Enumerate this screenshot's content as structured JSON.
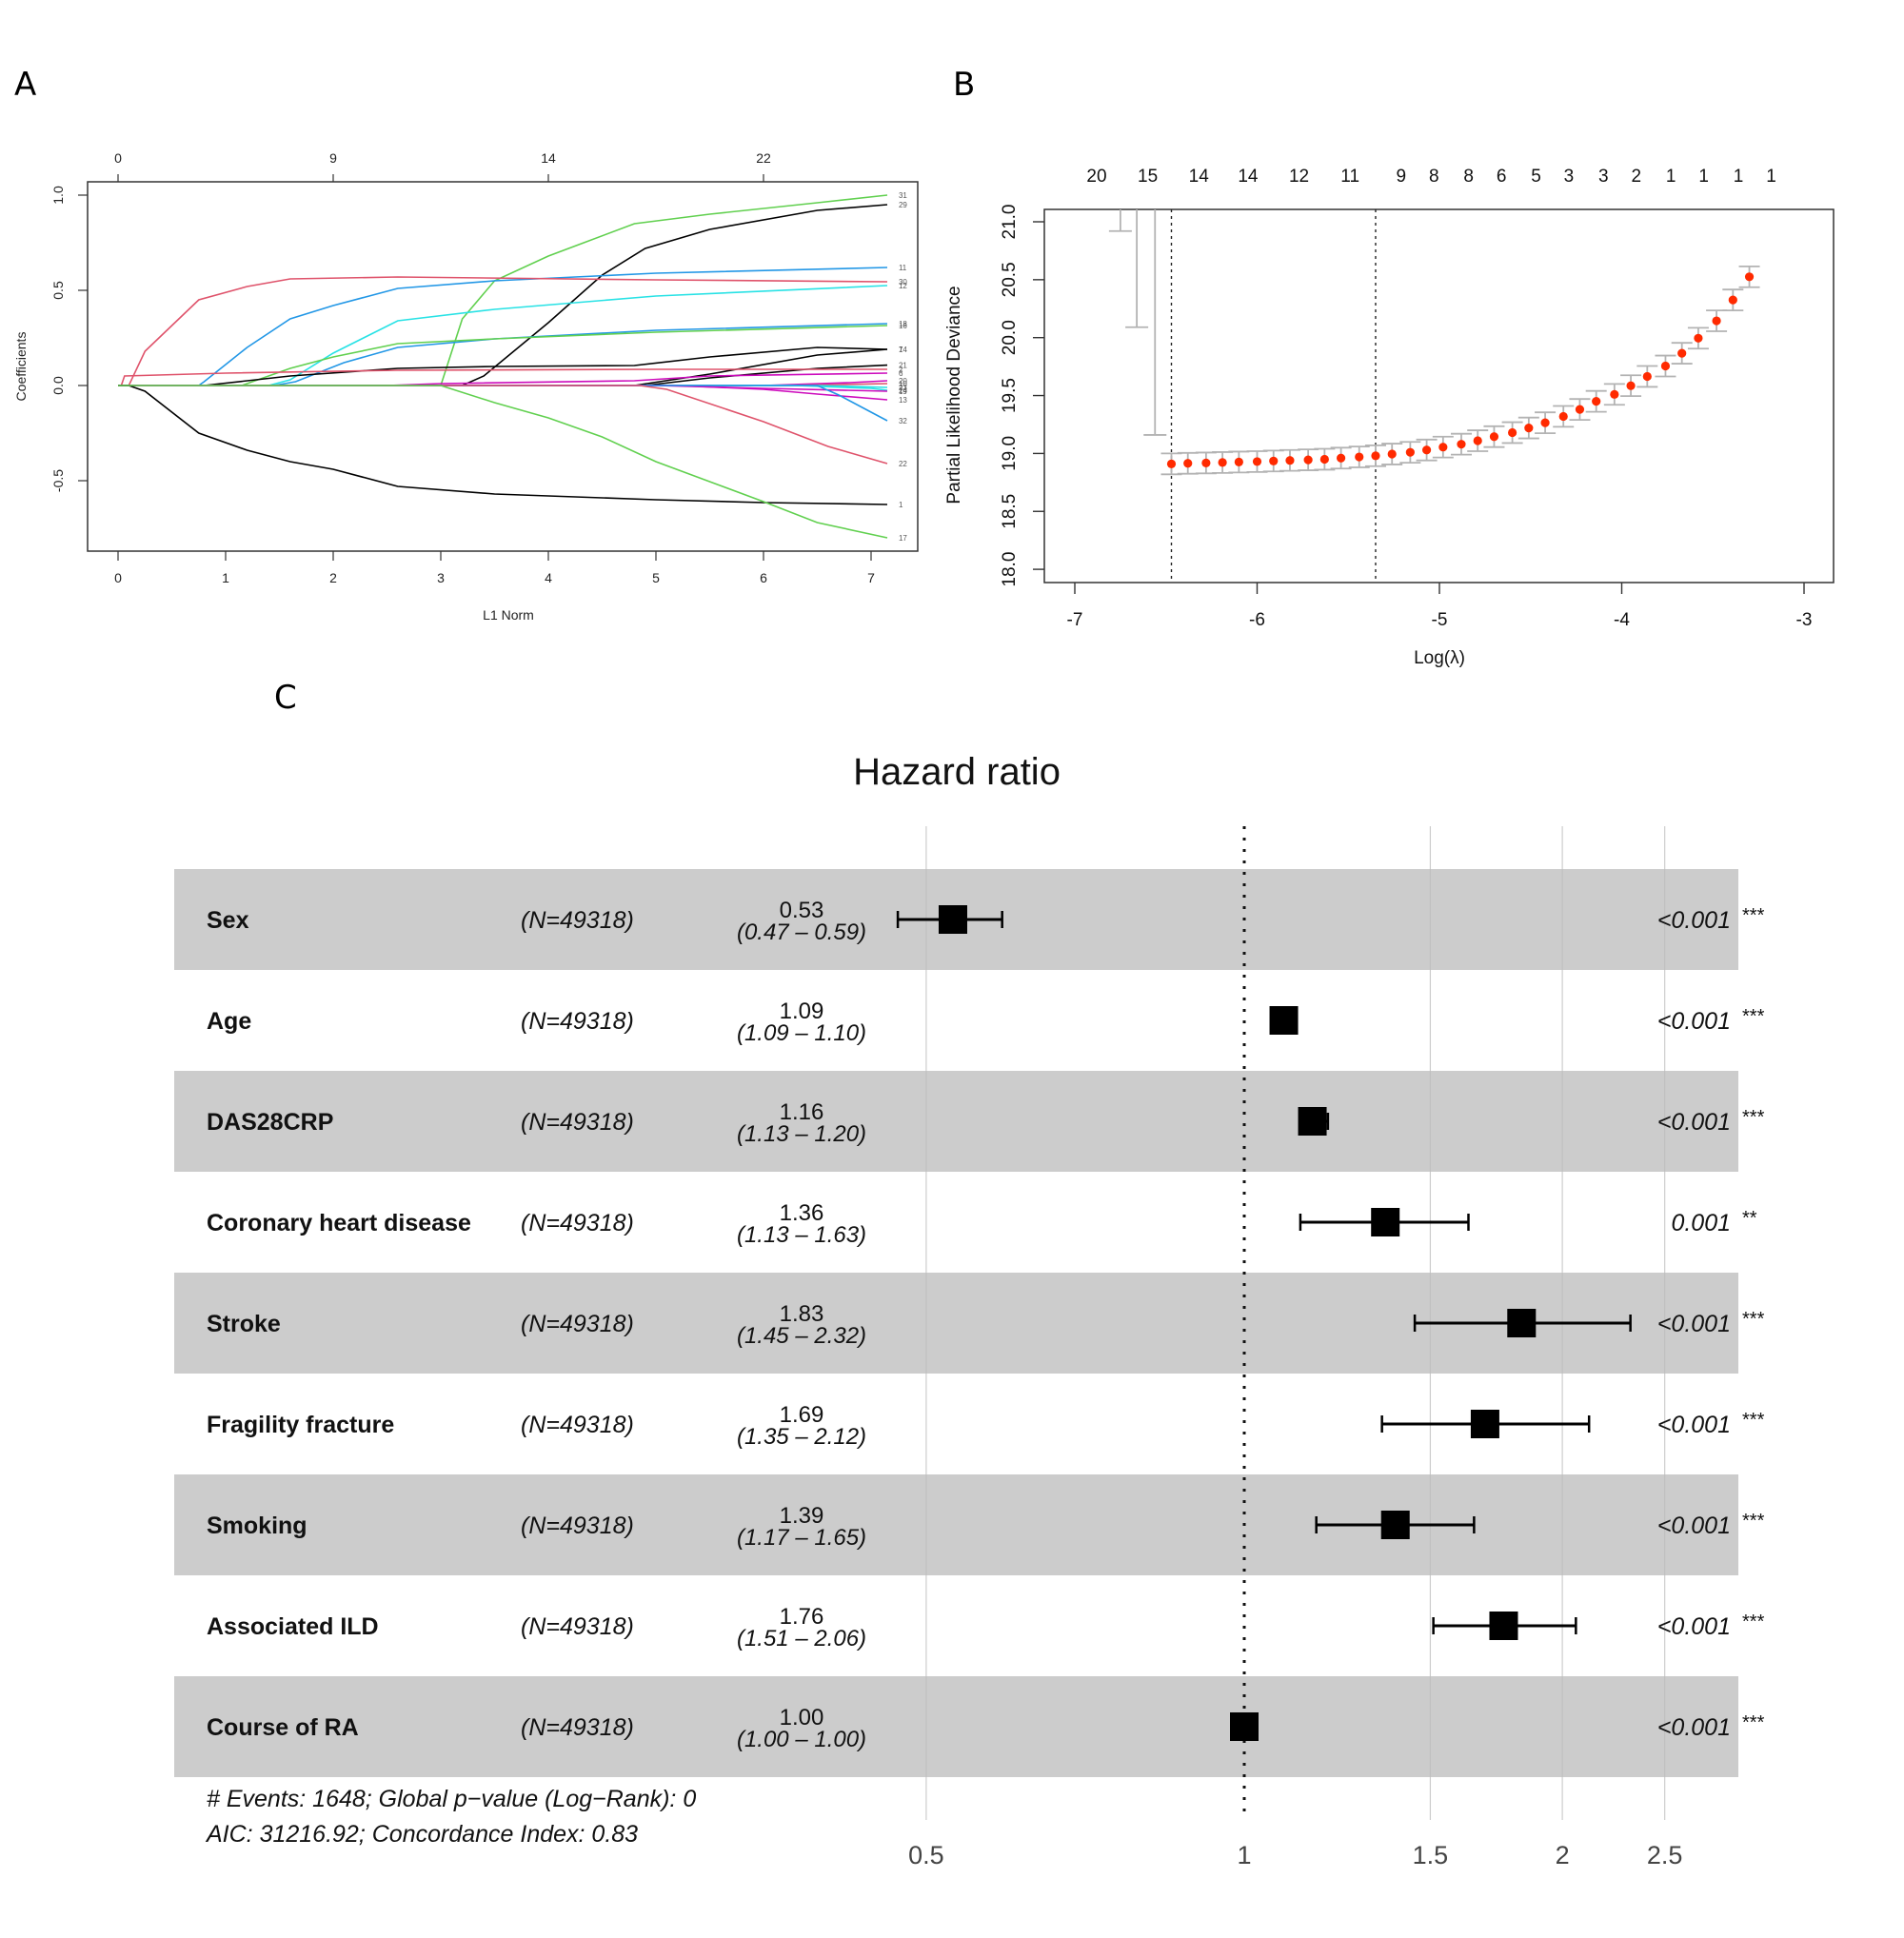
{
  "figure": {
    "panel_labels": [
      "A",
      "B",
      "C"
    ]
  },
  "colors": {
    "black": "#000000",
    "red": "#DF536B",
    "green": "#61D04F",
    "blue": "#2297E6",
    "cyan": "#28E2E5",
    "magenta": "#CD0BBC",
    "point_red": "#FF2A00",
    "errorbar_grey": "#B3B3B3",
    "band_grey": "#CCCCCC",
    "gridline_grey": "#BDBDBD"
  },
  "chart_data": [
    {
      "id": "A",
      "type": "line",
      "title": "",
      "xlabel": "L1 Norm",
      "ylabel": "Coefficients",
      "xlim": [
        -0.3,
        7.4
      ],
      "ylim": [
        -0.87,
        1.07
      ],
      "x_ticks": [
        0,
        1,
        2,
        3,
        4,
        5,
        6,
        7
      ],
      "y_ticks": [
        -0.5,
        0.0,
        0.5,
        1.0
      ],
      "y_tick_labels": [
        "-0.5",
        "0.0",
        "0.5",
        "1.0"
      ],
      "top_axis": {
        "ticks_at_x": [
          0,
          2,
          4,
          6
        ],
        "labels": [
          "0",
          "9",
          "14",
          "22"
        ]
      },
      "series": [
        {
          "name": "31",
          "color": "green",
          "x": [
            0,
            3.0,
            3.2,
            3.5,
            4.0,
            4.8,
            5.5,
            6.5,
            7.15
          ],
          "y": [
            0,
            0,
            0.35,
            0.55,
            0.68,
            0.85,
            0.9,
            0.96,
            1.0
          ]
        },
        {
          "name": "29",
          "color": "black",
          "x": [
            0,
            3.2,
            3.4,
            4.0,
            4.5,
            4.9,
            5.5,
            6.5,
            7.15
          ],
          "y": [
            0,
            0,
            0.05,
            0.33,
            0.58,
            0.72,
            0.82,
            0.92,
            0.95
          ]
        },
        {
          "name": "11",
          "color": "blue",
          "x": [
            0,
            0.75,
            0.8,
            1.2,
            1.6,
            2.0,
            2.6,
            3.5,
            5.0,
            7.15
          ],
          "y": [
            0,
            0,
            0.02,
            0.2,
            0.35,
            0.42,
            0.51,
            0.55,
            0.59,
            0.62
          ]
        },
        {
          "name": "30",
          "color": "red",
          "x": [
            0,
            0.1,
            0.25,
            0.75,
            1.2,
            1.6,
            2.6,
            5.0,
            7.15
          ],
          "y": [
            0,
            0,
            0.18,
            0.45,
            0.52,
            0.56,
            0.57,
            0.555,
            0.545
          ]
        },
        {
          "name": "12",
          "color": "cyan",
          "x": [
            0,
            1.4,
            1.6,
            2.0,
            2.6,
            3.5,
            5.0,
            7.15
          ],
          "y": [
            0,
            0,
            0.03,
            0.17,
            0.34,
            0.4,
            0.47,
            0.525
          ]
        },
        {
          "name": "18",
          "color": "blue",
          "x": [
            0,
            1.45,
            1.65,
            2.1,
            2.6,
            3.5,
            5.0,
            7.15
          ],
          "y": [
            0,
            0,
            0.02,
            0.12,
            0.2,
            0.245,
            0.29,
            0.325
          ]
        },
        {
          "name": "16",
          "color": "green",
          "x": [
            0,
            1.15,
            1.6,
            2.0,
            2.6,
            3.5,
            5.0,
            7.15
          ],
          "y": [
            0,
            0,
            0.09,
            0.15,
            0.22,
            0.245,
            0.28,
            0.315
          ]
        },
        {
          "name": "7",
          "color": "black",
          "x": [
            0,
            0.8,
            1.6,
            2.6,
            3.5,
            4.8,
            5.5,
            6.5,
            7.15
          ],
          "y": [
            0,
            0,
            0.05,
            0.09,
            0.1,
            0.105,
            0.15,
            0.2,
            0.19
          ]
        },
        {
          "name": "14",
          "color": "black",
          "x": [
            0,
            4.8,
            5.5,
            6.5,
            7.15
          ],
          "y": [
            0,
            0,
            0.06,
            0.16,
            0.19
          ]
        },
        {
          "name": "21",
          "color": "black",
          "x": [
            0,
            4.9,
            5.5,
            6.5,
            7.15
          ],
          "y": [
            0,
            0,
            0.04,
            0.09,
            0.107
          ]
        },
        {
          "name": "2",
          "color": "red",
          "x": [
            0,
            0.03,
            0.06,
            1.0,
            2.6,
            5.0,
            7.15
          ],
          "y": [
            0,
            0,
            0.05,
            0.065,
            0.08,
            0.085,
            0.085
          ]
        },
        {
          "name": "6",
          "color": "magenta",
          "x": [
            0,
            2.5,
            3.0,
            4.8,
            5.5,
            7.15
          ],
          "y": [
            0,
            0,
            0.01,
            0.025,
            0.05,
            0.065
          ]
        },
        {
          "name": "20",
          "color": "magenta",
          "x": [
            0,
            6.0,
            6.8,
            7.15
          ],
          "y": [
            0,
            0,
            0.015,
            0.025
          ]
        },
        {
          "name": "10",
          "color": "red",
          "x": [
            0,
            6.2,
            7.15
          ],
          "y": [
            0,
            0,
            0.01
          ]
        },
        {
          "name": "23",
          "color": "cyan",
          "x": [
            0,
            6.5,
            7.15
          ],
          "y": [
            0,
            0,
            -0.01
          ]
        },
        {
          "name": "24",
          "color": "cyan",
          "x": [
            0,
            6.3,
            7.0,
            7.15
          ],
          "y": [
            0,
            0,
            -0.015,
            -0.025
          ]
        },
        {
          "name": "19",
          "color": "magenta",
          "x": [
            0,
            5.0,
            6.0,
            7.15
          ],
          "y": [
            0,
            0,
            -0.015,
            -0.03
          ]
        },
        {
          "name": "13",
          "color": "magenta",
          "x": [
            0,
            5.2,
            6.0,
            6.5,
            7.15
          ],
          "y": [
            0,
            0,
            -0.02,
            -0.045,
            -0.075
          ]
        },
        {
          "name": "32",
          "color": "blue",
          "x": [
            0,
            6.5,
            6.7,
            7.0,
            7.15
          ],
          "y": [
            0,
            0,
            -0.05,
            -0.14,
            -0.185
          ]
        },
        {
          "name": "22",
          "color": "red",
          "x": [
            0,
            4.85,
            5.1,
            6.0,
            6.6,
            7.15
          ],
          "y": [
            0,
            0,
            -0.02,
            -0.19,
            -0.32,
            -0.41
          ]
        },
        {
          "name": "1",
          "color": "black",
          "x": [
            0,
            0.1,
            0.25,
            0.75,
            1.2,
            1.6,
            2.0,
            2.6,
            3.5,
            5.0,
            6.0,
            7.15
          ],
          "y": [
            0,
            0,
            -0.03,
            -0.25,
            -0.34,
            -0.4,
            -0.44,
            -0.53,
            -0.57,
            -0.6,
            -0.615,
            -0.625
          ]
        },
        {
          "name": "17",
          "color": "green",
          "x": [
            0,
            3.0,
            3.5,
            4.0,
            4.5,
            5.0,
            6.0,
            6.5,
            7.15
          ],
          "y": [
            0,
            0,
            -0.09,
            -0.17,
            -0.27,
            -0.4,
            -0.61,
            -0.72,
            -0.8
          ]
        }
      ]
    },
    {
      "id": "B",
      "type": "scatter",
      "title": "",
      "xlabel": "Log(λ)",
      "ylabel": "Partial Likelihood Deviance",
      "xlim": [
        -7.16,
        -2.84
      ],
      "ylim": [
        17.88,
        21.1
      ],
      "x_ticks": [
        -7,
        -6,
        -5,
        -4,
        -3
      ],
      "y_ticks": [
        18.0,
        18.5,
        19.0,
        19.5,
        20.0,
        20.5,
        21.0
      ],
      "y_tick_labels": [
        "18.0",
        "18.5",
        "19.0",
        "19.5",
        "20.0",
        "20.5",
        "21.0"
      ],
      "top_axis_labels": [
        "20",
        "15",
        "14",
        "14",
        "12",
        "11",
        "9",
        "8",
        "8",
        "6",
        "5",
        "3",
        "3",
        "2",
        "1",
        "1",
        "1",
        "1"
      ],
      "top_axis_positions": [
        -6.88,
        -6.6,
        -6.32,
        -6.05,
        -5.77,
        -5.49,
        -5.21,
        -5.03,
        -4.84,
        -4.66,
        -4.47,
        -4.29,
        -4.1,
        -3.92,
        -3.73,
        -3.55,
        -3.36,
        -3.18
      ],
      "vlines": [
        -6.47,
        -5.35
      ],
      "offscale_errorbars": [
        {
          "x": -6.75,
          "lower": 20.92
        },
        {
          "x": -6.66,
          "lower": 20.09
        },
        {
          "x": -6.56,
          "lower": 19.16
        }
      ],
      "points": [
        {
          "x": -6.47,
          "y": 18.91,
          "lo": 18.82,
          "hi": 19.0
        },
        {
          "x": -6.38,
          "y": 18.915,
          "lo": 18.825,
          "hi": 19.005
        },
        {
          "x": -6.28,
          "y": 18.918,
          "lo": 18.828,
          "hi": 19.008
        },
        {
          "x": -6.19,
          "y": 18.922,
          "lo": 18.832,
          "hi": 19.012
        },
        {
          "x": -6.1,
          "y": 18.926,
          "lo": 18.836,
          "hi": 19.016
        },
        {
          "x": -6.0,
          "y": 18.93,
          "lo": 18.84,
          "hi": 19.02
        },
        {
          "x": -5.91,
          "y": 18.935,
          "lo": 18.845,
          "hi": 19.025
        },
        {
          "x": -5.82,
          "y": 18.94,
          "lo": 18.85,
          "hi": 19.03
        },
        {
          "x": -5.72,
          "y": 18.945,
          "lo": 18.855,
          "hi": 19.035
        },
        {
          "x": -5.63,
          "y": 18.95,
          "lo": 18.86,
          "hi": 19.04
        },
        {
          "x": -5.54,
          "y": 18.96,
          "lo": 18.87,
          "hi": 19.05
        },
        {
          "x": -5.44,
          "y": 18.97,
          "lo": 18.88,
          "hi": 19.06
        },
        {
          "x": -5.35,
          "y": 18.98,
          "lo": 18.89,
          "hi": 19.07
        },
        {
          "x": -5.26,
          "y": 18.995,
          "lo": 18.905,
          "hi": 19.085
        },
        {
          "x": -5.16,
          "y": 19.01,
          "lo": 18.92,
          "hi": 19.1
        },
        {
          "x": -5.07,
          "y": 19.03,
          "lo": 18.94,
          "hi": 19.12
        },
        {
          "x": -4.98,
          "y": 19.055,
          "lo": 18.965,
          "hi": 19.145
        },
        {
          "x": -4.88,
          "y": 19.08,
          "lo": 18.99,
          "hi": 19.17
        },
        {
          "x": -4.79,
          "y": 19.11,
          "lo": 19.02,
          "hi": 19.2
        },
        {
          "x": -4.7,
          "y": 19.145,
          "lo": 19.055,
          "hi": 19.235
        },
        {
          "x": -4.6,
          "y": 19.18,
          "lo": 19.09,
          "hi": 19.27
        },
        {
          "x": -4.51,
          "y": 19.22,
          "lo": 19.13,
          "hi": 19.31
        },
        {
          "x": -4.42,
          "y": 19.265,
          "lo": 19.175,
          "hi": 19.355
        },
        {
          "x": -4.32,
          "y": 19.32,
          "lo": 19.23,
          "hi": 19.41
        },
        {
          "x": -4.23,
          "y": 19.38,
          "lo": 19.29,
          "hi": 19.47
        },
        {
          "x": -4.14,
          "y": 19.45,
          "lo": 19.36,
          "hi": 19.54
        },
        {
          "x": -4.04,
          "y": 19.51,
          "lo": 19.42,
          "hi": 19.6
        },
        {
          "x": -3.95,
          "y": 19.585,
          "lo": 19.495,
          "hi": 19.675
        },
        {
          "x": -3.86,
          "y": 19.665,
          "lo": 19.575,
          "hi": 19.755
        },
        {
          "x": -3.76,
          "y": 19.755,
          "lo": 19.665,
          "hi": 19.845
        },
        {
          "x": -3.67,
          "y": 19.865,
          "lo": 19.775,
          "hi": 19.955
        },
        {
          "x": -3.58,
          "y": 19.995,
          "lo": 19.905,
          "hi": 20.085
        },
        {
          "x": -3.48,
          "y": 20.145,
          "lo": 20.055,
          "hi": 20.235
        },
        {
          "x": -3.39,
          "y": 20.325,
          "lo": 20.235,
          "hi": 20.415
        },
        {
          "x": -3.3,
          "y": 20.525,
          "lo": 20.435,
          "hi": 20.615
        }
      ]
    },
    {
      "id": "C",
      "type": "forest",
      "title": "Hazard ratio",
      "x_scale": "log",
      "xlim": [
        0.43,
        2.9
      ],
      "x_ticks": [
        0.5,
        1,
        1.5,
        2,
        2.5
      ],
      "x_tick_labels": [
        "0.5",
        "1",
        "1.5",
        "2",
        "2.5"
      ],
      "reference_line": 1,
      "rows": [
        {
          "label": "Sex",
          "n": "(N=49318)",
          "hr": 0.53,
          "hr_text": "0.53",
          "lo": 0.47,
          "hi": 0.59,
          "ci_text": "(0.47 – 0.59)",
          "p": "<0.001",
          "stars": "***",
          "shaded": true
        },
        {
          "label": "Age",
          "n": "(N=49318)",
          "hr": 1.09,
          "hr_text": "1.09",
          "lo": 1.09,
          "hi": 1.1,
          "ci_text": "(1.09 – 1.10)",
          "p": "<0.001",
          "stars": "***",
          "shaded": false
        },
        {
          "label": "DAS28CRP",
          "n": "(N=49318)",
          "hr": 1.16,
          "hr_text": "1.16",
          "lo": 1.13,
          "hi": 1.2,
          "ci_text": "(1.13 – 1.20)",
          "p": "<0.001",
          "stars": "***",
          "shaded": true
        },
        {
          "label": "Coronary heart disease",
          "n": "(N=49318)",
          "hr": 1.36,
          "hr_text": "1.36",
          "lo": 1.13,
          "hi": 1.63,
          "ci_text": "(1.13 – 1.63)",
          "p": "0.001",
          "stars": "**",
          "shaded": false
        },
        {
          "label": "Stroke",
          "n": "(N=49318)",
          "hr": 1.83,
          "hr_text": "1.83",
          "lo": 1.45,
          "hi": 2.32,
          "ci_text": "(1.45 – 2.32)",
          "p": "<0.001",
          "stars": "***",
          "shaded": true
        },
        {
          "label": "Fragility fracture",
          "n": "(N=49318)",
          "hr": 1.69,
          "hr_text": "1.69",
          "lo": 1.35,
          "hi": 2.12,
          "ci_text": "(1.35 – 2.12)",
          "p": "<0.001",
          "stars": "***",
          "shaded": false
        },
        {
          "label": "Smoking",
          "n": "(N=49318)",
          "hr": 1.39,
          "hr_text": "1.39",
          "lo": 1.17,
          "hi": 1.65,
          "ci_text": "(1.17 – 1.65)",
          "p": "<0.001",
          "stars": "***",
          "shaded": true
        },
        {
          "label": "Associated ILD",
          "n": "(N=49318)",
          "hr": 1.76,
          "hr_text": "1.76",
          "lo": 1.51,
          "hi": 2.06,
          "ci_text": "(1.51 – 2.06)",
          "p": "<0.001",
          "stars": "***",
          "shaded": false
        },
        {
          "label": "Course of RA",
          "n": "(N=49318)",
          "hr": 1.0,
          "hr_text": "1.00",
          "lo": 1.0,
          "hi": 1.0,
          "ci_text": "(1.00 – 1.00)",
          "p": "<0.001",
          "stars": "***",
          "shaded": true
        }
      ],
      "footer": [
        "# Events: 1648; Global p−value (Log−Rank): 0",
        "AIC: 31216.92; Concordance Index: 0.83"
      ]
    }
  ]
}
